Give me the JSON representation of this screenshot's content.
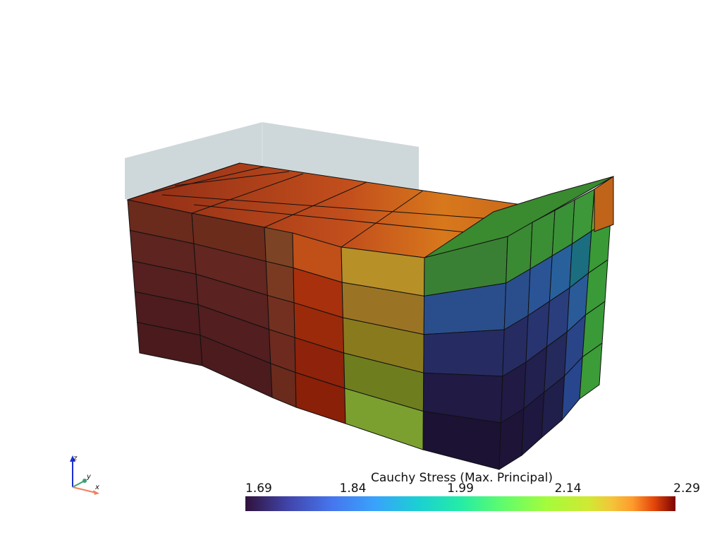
{
  "colorbar": {
    "title": "Cauchy Stress (Max. Principal)",
    "range": [
      1.69,
      2.29
    ],
    "ticks": [
      1.69,
      1.84,
      1.99,
      2.14,
      2.29
    ]
  },
  "axes": {
    "x": "x",
    "y": "y",
    "z": "z"
  }
}
